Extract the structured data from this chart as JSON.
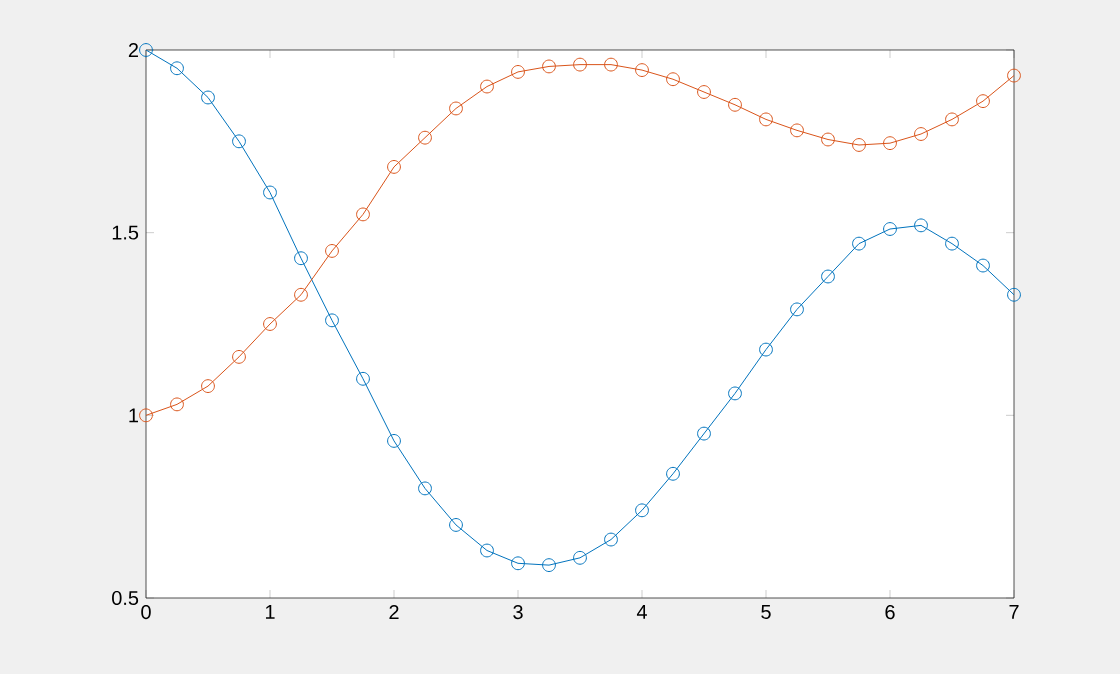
{
  "chart_data": {
    "type": "line",
    "x": [
      0,
      0.25,
      0.5,
      0.75,
      1,
      1.25,
      1.5,
      1.75,
      2,
      2.25,
      2.5,
      2.75,
      3,
      3.25,
      3.5,
      3.75,
      4,
      4.25,
      4.5,
      4.75,
      5,
      5.25,
      5.5,
      5.75,
      6,
      6.25,
      6.5,
      6.75,
      7
    ],
    "series": [
      {
        "color": "#0072bd",
        "values": [
          2,
          1.95,
          1.87,
          1.75,
          1.61,
          1.43,
          1.26,
          1.1,
          0.93,
          0.8,
          0.7,
          0.63,
          0.595,
          0.59,
          0.61,
          0.66,
          0.74,
          0.84,
          0.95,
          1.06,
          1.18,
          1.29,
          1.38,
          1.47,
          1.51,
          1.52,
          1.47,
          1.41,
          1.33
        ]
      },
      {
        "color": "#d95319",
        "values": [
          1,
          1.03,
          1.08,
          1.16,
          1.25,
          1.33,
          1.45,
          1.55,
          1.68,
          1.76,
          1.84,
          1.9,
          1.94,
          1.955,
          1.96,
          1.96,
          1.945,
          1.92,
          1.885,
          1.85,
          1.81,
          1.78,
          1.755,
          1.74,
          1.745,
          1.77,
          1.81,
          1.86,
          1.93
        ]
      }
    ],
    "xlim": [
      0,
      7
    ],
    "ylim": [
      0.5,
      2
    ],
    "xticks": [
      0,
      1,
      2,
      3,
      4,
      5,
      6,
      7
    ],
    "yticks": [
      0.5,
      1,
      1.5,
      2
    ],
    "marker": "circle",
    "line_style": "solid"
  }
}
